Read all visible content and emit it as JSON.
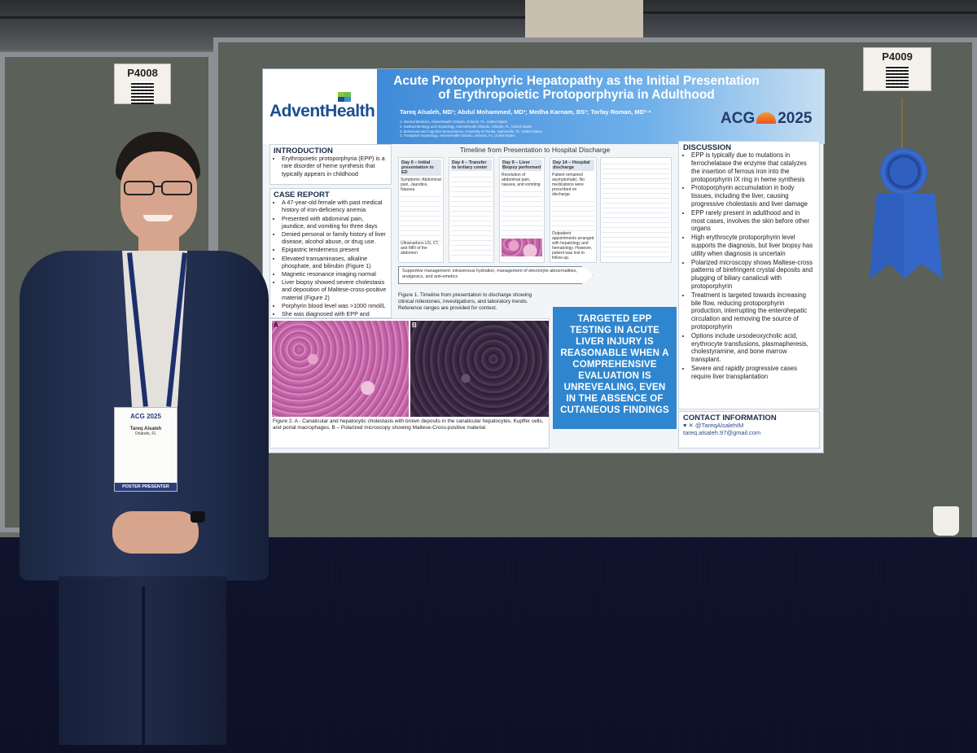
{
  "booths": {
    "left_number": "P4008",
    "right_number": "P4009"
  },
  "poster": {
    "institution_logo": "AdventHealth",
    "title_line1": "Acute Protoporphyric Hepatopathy as the Initial Presentation",
    "title_line2": "of Erythropoietic Protoporphyria in Adulthood",
    "authors": "Tareq Alsaleh, MD¹; Abdul Mohammed, MD²; Medha Karnam, BS³; Torfay Roman, MD²·⁴",
    "affiliations": [
      "1. Internal Medicine, AdventHealth Orlando, Orlando, FL, United States",
      "2. Gastroenterology and Hepatology, AdventHealth Orlando, Orlando, FL, United States",
      "3. Behavioral and Cognitive Neuroscience, University of Florida, Gainesville, FL, United States",
      "4. Transplant Hepatology, AdventHealth Orlando, Orlando, FL, United States"
    ],
    "conference_logo": {
      "left": "ACG",
      "right": "2025"
    },
    "introduction": {
      "heading": "INTRODUCTION",
      "items": [
        "Erythropoietic protoporphyria (EPP) is a rare disorder of heme synthesis that typically appears in childhood"
      ]
    },
    "case_report": {
      "heading": "CASE REPORT",
      "items": [
        "A 47-year-old female with past medical history of iron-deficiency anemia",
        "Presented with abdominal pain, jaundice, and vomiting for three days",
        "Denied personal or family history of liver disease, alcohol abuse, or drug use.",
        "Epigastric tenderness present",
        "Elevated transaminases, alkaline phosphate, and bilirubin (Figure 1)",
        "Magnetic resonance imaging normal",
        "Liver biopsy showed severe cholestasis and deposition of Maltese-cross-positive material (Figure 2)",
        "Porphyrin blood level was >1000 nmol/L",
        "She was diagnosed with EPP and treated with IV fluids, analgesics, and anti-emetics"
      ]
    },
    "timeline": {
      "heading": "Timeline from Presentation to Hospital Discharge",
      "cards": [
        {
          "title": "Day 0 – Initial presentation to ED",
          "note": "Symptoms: Abdominal pain, Jaundice, Nausea"
        },
        {
          "title": "Day 4 – Transfer to tertiary center",
          "note": ""
        },
        {
          "title": "Day 9 – Liver Biopsy performed",
          "note": "Resolution of abdominal pain, nausea, and vomiting"
        },
        {
          "title": "Day 14 – Hospital discharge",
          "note": "Patient remained asymptomatic. No medications were prescribed on discharge."
        }
      ],
      "outpatient_note": "Outpatient appointments arranged with hepatology and hematology. However, patient was lost to follow-up.",
      "imaging_note": "Ultramarkers US, CT, and MRI of the abdomen",
      "arrow_text": "Supportive management: intravenous hydration, management of electrolyte abnormalities, analgesics, and anti-emetics",
      "figure1_caption": "Figure 1. Timeline from presentation to discharge showing clinical milestones, investigations, and laboratory trends. Reference ranges are provided for context."
    },
    "figure2": {
      "label_a": "A",
      "label_b": "B",
      "caption": "Figure 2. A - Canalicular and hepatocytic cholestasis with brown deposits in the canalicular hepatocytes, Kupffer cells, and portal macrophages. B – Polarized microscopy showing Maltese-Cross-positive material"
    },
    "callout": "TARGETED EPP TESTING IN ACUTE LIVER INJURY IS REASONABLE WHEN A COMPREHENSIVE EVALUATION IS UNREVEALING, EVEN IN THE ABSENCE OF CUTANEOUS FINDINGS",
    "discussion": {
      "heading": "DISCUSSION",
      "items": [
        "EPP is typically due to mutations in ferrochelatase the enzyme that catalyzes the insertion of ferrous iron into the protoporphyrin IX ring in heme synthesis",
        "Protoporphyrin accumulation in body tissues, including the liver, causing progressive cholestasis and liver damage",
        "EPP rarely present in adulthood and in most cases, involves the skin before other organs",
        "High erythrocyte protoporphyrin level supports the diagnosis, but liver biopsy has utility when diagnosis is uncertain",
        "Polarized microscopy shows Maltese-cross patterns of birefringent crystal deposits and plugging of biliary canaliculi with protoporphyrin",
        "Treatment is targeted towards increasing bile flow, reducing protoporphyrin production, interrupting the enterohepatic circulation and removing the source of protoporphyrin",
        "Options include ursodeoxycholic acid, erythrocyte transfusions, plasmapheresis, cholestyramine, and bone marrow transplant.",
        "Severe and rapidly progressive cases require liver transplantation"
      ]
    },
    "contact": {
      "heading": "CONTACT INFORMATION",
      "handle": "@TareqAlsalehIM",
      "email": "tareq.alsaleh.97@gmail.com"
    }
  },
  "presenter_badge": {
    "event": "ACG 2025",
    "name": "Tareq Alsaleh",
    "location": "Orlando, FL",
    "role": "POSTER PRESENTER"
  },
  "colors": {
    "poster_blue": "#3f8ad8",
    "callout_blue": "#2f86cf",
    "suit_navy": "#223050",
    "ribbon_blue": "#2f5fbf"
  }
}
